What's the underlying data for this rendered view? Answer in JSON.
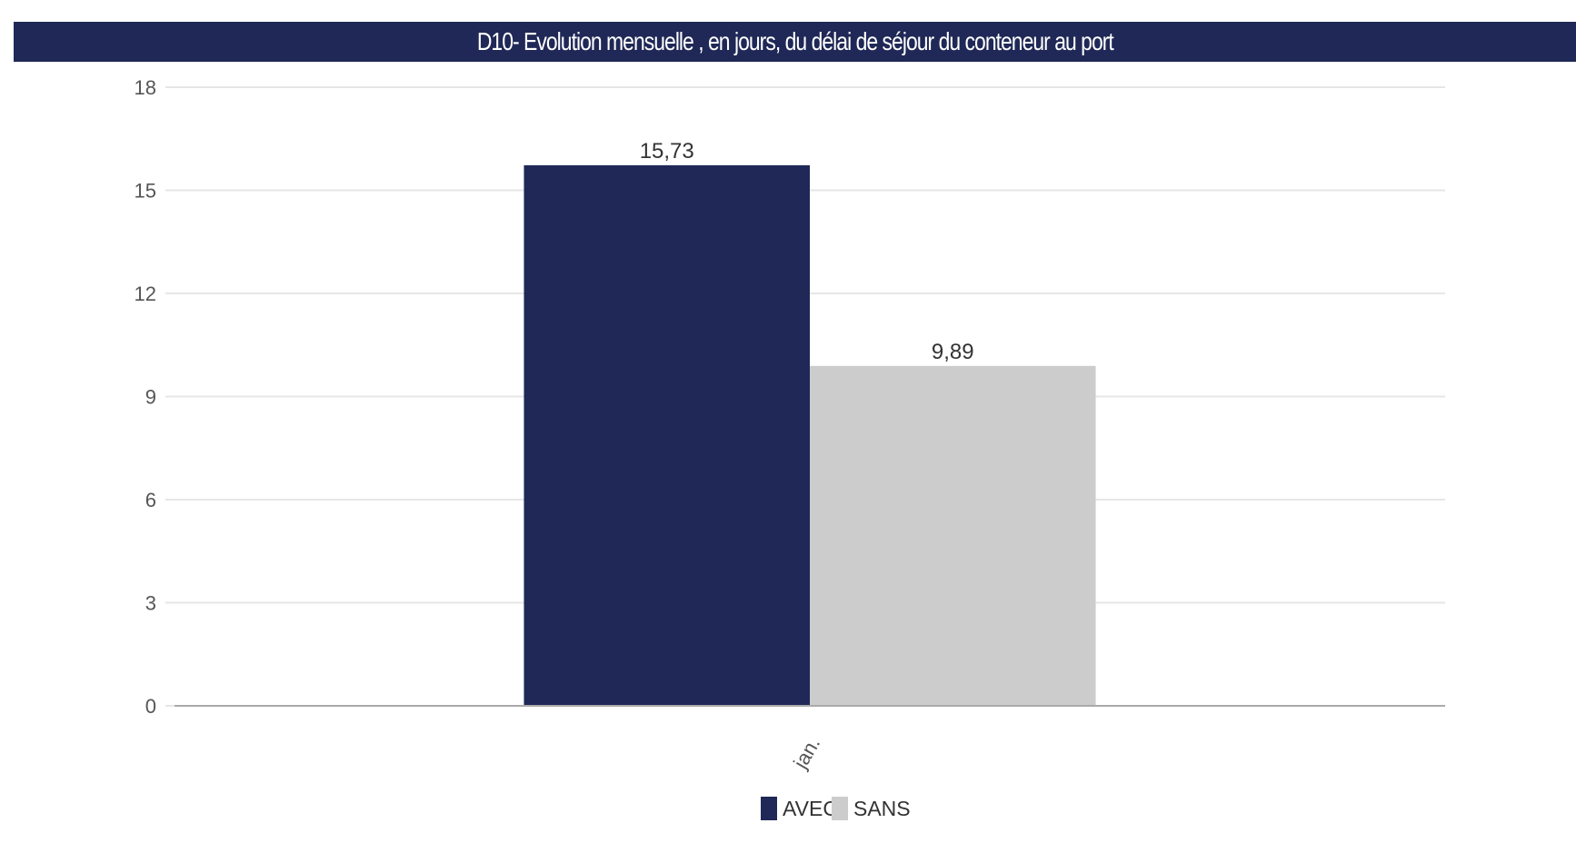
{
  "chart_title": "D10- Evolution mensuelle , en jours, du délai de séjour du conteneur au port",
  "colors": {
    "header_bg": "#1f2856",
    "avec": "#1f2856",
    "sans": "#cccccc",
    "grid": "#e6e6e6",
    "axis": "#aaaaaa"
  },
  "chart_data": {
    "type": "bar",
    "title": "D10- Evolution mensuelle , en jours, du délai de séjour du conteneur au port",
    "categories": [
      "jan."
    ],
    "series": [
      {
        "name": "AVEC",
        "values": [
          15.73
        ],
        "labels": [
          "15,73"
        ]
      },
      {
        "name": "SANS",
        "values": [
          9.89
        ],
        "labels": [
          "9,89"
        ]
      }
    ],
    "ylim": [
      0,
      18
    ],
    "yticks": [
      0,
      3,
      6,
      9,
      12,
      15,
      18
    ],
    "grid": true,
    "legend": "bottom-center"
  }
}
